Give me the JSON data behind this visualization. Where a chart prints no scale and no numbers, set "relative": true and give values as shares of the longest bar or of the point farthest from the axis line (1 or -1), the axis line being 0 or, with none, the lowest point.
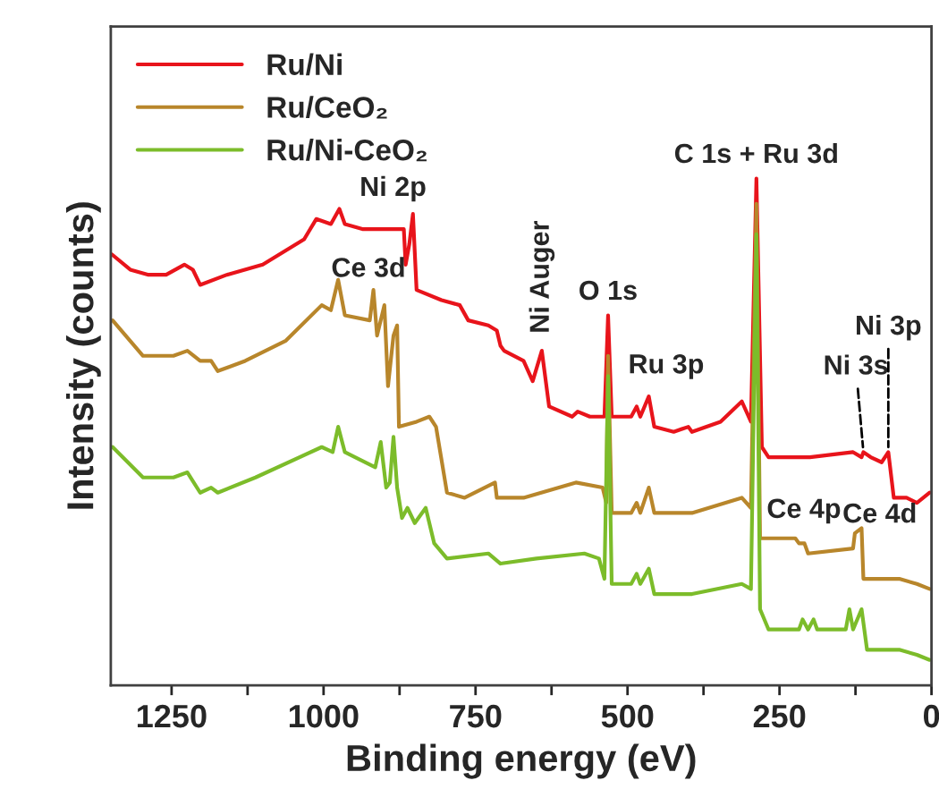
{
  "chart_data": {
    "type": "line",
    "relative": true,
    "xlabel": "Binding energy (eV)",
    "ylabel": "Intensity (counts)",
    "xlim": [
      1350,
      0
    ],
    "xticks": [
      1250,
      {
        "value": 1125,
        "label": null
      },
      1000,
      {
        "value": 875,
        "label": null
      },
      750,
      {
        "value": 625,
        "label": null
      },
      500,
      {
        "value": 375,
        "label": null
      },
      250,
      {
        "value": 125,
        "label": null
      },
      0
    ],
    "tick_labels": "x",
    "legend": "top left",
    "series": [
      {
        "name": "Ru/Ni",
        "color": "#e8141b",
        "x": [
          1348,
          1318,
          1288,
          1259,
          1229,
          1215,
          1203,
          1159,
          1100,
          1032,
          1012,
          988,
          974,
          965,
          935,
          885,
          868,
          865,
          859,
          853,
          847,
          806,
          776,
          762,
          729,
          715,
          709,
          703,
          671,
          656,
          641,
          629,
          591,
          582,
          562,
          538,
          532,
          526,
          494,
          485,
          479,
          465,
          456,
          424,
          400,
          394,
          347,
          312,
          297,
          288,
          279,
          268,
          200,
          129,
          115,
          112,
          100,
          82,
          71,
          62,
          41,
          24,
          3
        ],
        "values": [
          0.85,
          0.82,
          0.81,
          0.81,
          0.83,
          0.82,
          0.79,
          0.81,
          0.83,
          0.88,
          0.92,
          0.91,
          0.94,
          0.91,
          0.9,
          0.9,
          0.9,
          0.83,
          0.87,
          0.93,
          0.78,
          0.76,
          0.75,
          0.72,
          0.71,
          0.7,
          0.67,
          0.66,
          0.64,
          0.6,
          0.66,
          0.55,
          0.53,
          0.54,
          0.53,
          0.53,
          0.73,
          0.53,
          0.53,
          0.55,
          0.53,
          0.57,
          0.51,
          0.5,
          0.51,
          0.5,
          0.52,
          0.56,
          0.52,
          1.0,
          0.47,
          0.45,
          0.45,
          0.46,
          0.45,
          0.46,
          0.45,
          0.44,
          0.46,
          0.37,
          0.37,
          0.36,
          0.38
        ]
      },
      {
        "name": "Ru/CeO₂",
        "color": "#b8862b",
        "x": [
          1347,
          1297,
          1247,
          1224,
          1203,
          1185,
          1174,
          1129,
          1062,
          1003,
          988,
          976,
          965,
          924,
          918,
          912,
          906,
          900,
          894,
          885,
          879,
          876,
          847,
          826,
          815,
          797,
          768,
          718,
          715,
          671,
          585,
          541,
          535,
          532,
          526,
          494,
          485,
          479,
          465,
          456,
          394,
          312,
          297,
          288,
          282,
          268,
          224,
          218,
          209,
          203,
          129,
          126,
          115,
          112,
          53,
          24,
          3
        ],
        "values": [
          0.72,
          0.65,
          0.65,
          0.66,
          0.64,
          0.64,
          0.62,
          0.64,
          0.68,
          0.75,
          0.74,
          0.8,
          0.73,
          0.72,
          0.78,
          0.69,
          0.72,
          0.75,
          0.59,
          0.69,
          0.71,
          0.51,
          0.52,
          0.53,
          0.51,
          0.38,
          0.37,
          0.4,
          0.37,
          0.37,
          0.4,
          0.39,
          0.36,
          0.65,
          0.34,
          0.34,
          0.36,
          0.34,
          0.39,
          0.34,
          0.34,
          0.37,
          0.35,
          0.95,
          0.29,
          0.29,
          0.29,
          0.28,
          0.28,
          0.26,
          0.27,
          0.3,
          0.31,
          0.21,
          0.21,
          0.2,
          0.19
        ]
      },
      {
        "name": "Ru/Ni-CeO₂",
        "color": "#7cbc2a",
        "x": [
          1347,
          1297,
          1247,
          1224,
          1203,
          1185,
          1174,
          1112,
          1003,
          985,
          976,
          965,
          915,
          906,
          897,
          891,
          885,
          879,
          871,
          862,
          850,
          832,
          818,
          797,
          729,
          709,
          650,
          571,
          547,
          538,
          532,
          526,
          494,
          485,
          479,
          465,
          456,
          394,
          312,
          297,
          288,
          282,
          268,
          218,
          212,
          203,
          194,
          188,
          141,
          135,
          129,
          115,
          106,
          53,
          24,
          3
        ],
        "values": [
          0.47,
          0.41,
          0.41,
          0.42,
          0.38,
          0.39,
          0.38,
          0.41,
          0.47,
          0.46,
          0.51,
          0.46,
          0.43,
          0.48,
          0.39,
          0.4,
          0.49,
          0.39,
          0.33,
          0.35,
          0.32,
          0.35,
          0.28,
          0.25,
          0.26,
          0.24,
          0.25,
          0.26,
          0.25,
          0.21,
          0.61,
          0.2,
          0.2,
          0.22,
          0.2,
          0.23,
          0.18,
          0.18,
          0.2,
          0.19,
          0.89,
          0.15,
          0.11,
          0.11,
          0.13,
          0.11,
          0.13,
          0.11,
          0.11,
          0.15,
          0.11,
          0.15,
          0.07,
          0.07,
          0.06,
          0.05
        ]
      }
    ],
    "annotations": [
      {
        "text": "Ni 2p",
        "x": 853,
        "y": 0.93
      },
      {
        "text": "Ce 3d",
        "x": 918,
        "y": 0.78
      },
      {
        "text": "Ni Auger",
        "x": 641,
        "y": 0.66
      },
      {
        "text": "O 1s",
        "x": 532,
        "y": 0.73
      },
      {
        "text": "Ru 3p",
        "x": 465,
        "y": 0.57
      },
      {
        "text": "C 1s + Ru 3d",
        "x": 288,
        "y": 1.0
      },
      {
        "text": "Ni 3s",
        "x": 112,
        "y": 0.46
      },
      {
        "text": "Ni 3p",
        "x": 71,
        "y": 0.46
      },
      {
        "text": "Ce 4p",
        "x": 218,
        "y": 0.28
      },
      {
        "text": "Ce 4d",
        "x": 126,
        "y": 0.3
      }
    ]
  }
}
